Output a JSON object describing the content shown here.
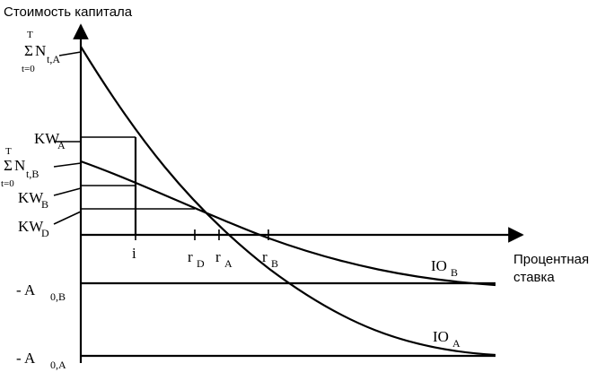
{
  "axes": {
    "y_title": "Стоимость капитала",
    "x_title_line1": "Процентная",
    "x_title_line2": "ставка"
  },
  "y_labels": {
    "sum_a_top": "T",
    "sum_a_sigma": "Σ",
    "sum_a_n": "N",
    "sum_a_sub": "t,A",
    "sum_a_bottom": "t=0",
    "kw_a": "KW",
    "kw_a_sub": "A",
    "sum_b_top": "T",
    "sum_b_sigma": "Σ",
    "sum_b_n": "N",
    "sum_b_sub": "t,B",
    "sum_b_bottom": "t=0",
    "kw_b": "KW",
    "kw_b_sub": "B",
    "kw_d": "KW",
    "kw_d_sub": "D",
    "a0b_prefix": "- A",
    "a0b_sub": "0,B",
    "a0a_prefix": "- A",
    "a0a_sub": "0,A"
  },
  "x_labels": {
    "i": "i",
    "r_d": "r",
    "r_d_sub": "D",
    "r_a": "r",
    "r_a_sub": "A",
    "r_b": "r",
    "r_b_sub": "B"
  },
  "curve_labels": {
    "io_b": "IO",
    "io_b_sub": "B",
    "io_a": "IO",
    "io_a_sub": "A"
  }
}
